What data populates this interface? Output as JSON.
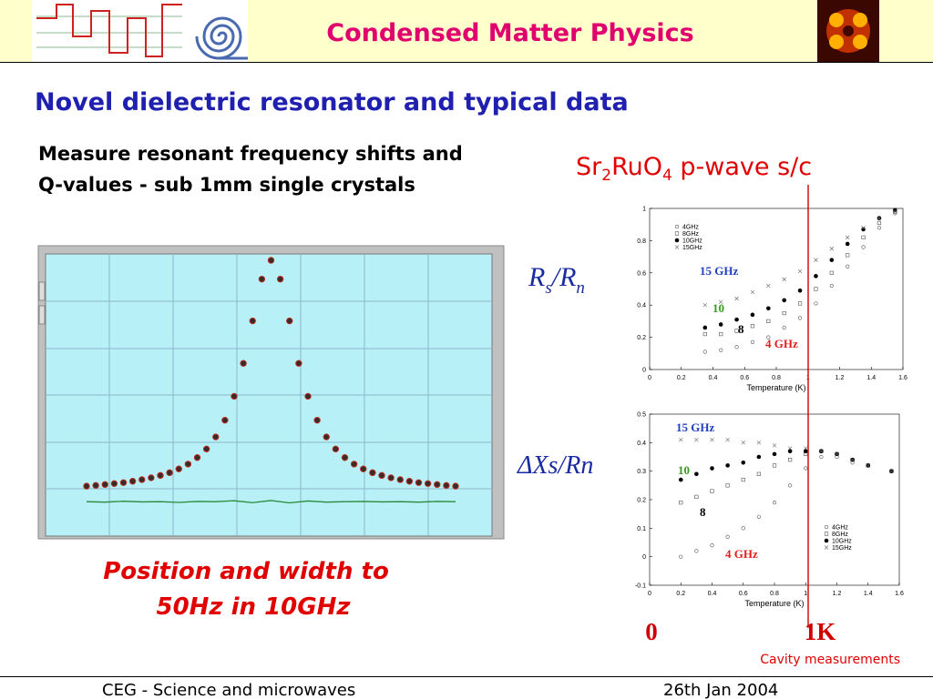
{
  "header": {
    "title": "Condensed Matter Physics"
  },
  "heading": "Novel dielectric resonator and typical data",
  "intro": [
    "Measure resonant frequency shifts and",
    "Q-values - sub 1mm single crystals"
  ],
  "material": [
    "Sr",
    "2",
    "RuO",
    "4",
    " p-wave s/c"
  ],
  "labels": {
    "rs_rn": [
      "R",
      "s",
      "/R",
      "n"
    ],
    "xs_rn": "ΔXs/Rn",
    "zero": "0",
    "one_k": "1K"
  },
  "resonance": {
    "x": [
      0,
      2.5,
      5,
      7.5,
      10,
      12.5,
      15,
      17.5,
      20,
      22.5,
      25,
      27.5,
      30,
      32.5,
      35,
      37.5,
      40,
      42.5,
      45,
      47.5,
      50,
      52.5,
      55,
      57.5,
      60,
      62.5,
      65,
      67.5,
      70,
      72.5,
      75,
      77.5,
      80,
      82.5,
      85,
      87.5,
      90,
      92.5,
      95,
      97.5,
      100
    ],
    "y": [
      2.7,
      3.0,
      3.4,
      3.8,
      4.2,
      4.8,
      5.5,
      6.3,
      7.3,
      8.5,
      10.1,
      12.2,
      15.0,
      18.7,
      23.9,
      31.1,
      41.4,
      55.6,
      73.9,
      91.9,
      100,
      91.9,
      73.9,
      55.6,
      41.4,
      31.1,
      23.9,
      18.7,
      15.0,
      12.2,
      10.1,
      8.5,
      7.3,
      6.3,
      5.5,
      4.8,
      4.2,
      3.8,
      3.4,
      3.0,
      2.7
    ],
    "baseline": {
      "x": [
        0,
        5,
        10,
        15,
        20,
        25,
        30,
        35,
        40,
        45,
        50,
        55,
        60,
        65,
        70,
        75,
        80,
        85,
        90,
        95,
        100
      ],
      "values": [
        -4,
        -4.2,
        -3.8,
        -4.1,
        -4,
        -4.3,
        -3.9,
        -4,
        -3.6,
        -4.4,
        -3.5,
        -4.5,
        -3.7,
        -4.2,
        -4,
        -3.9,
        -4.1,
        -4,
        -4.2,
        -3.9,
        -4
      ]
    },
    "caption": [
      "Position and width to",
      "50Hz in 10GHz"
    ]
  },
  "charts": [
    {
      "type": "scatter",
      "x_label": "Temperature (K)",
      "xlim": [
        0,
        1.6
      ],
      "ylim": [
        0,
        1
      ],
      "xticks": [
        0,
        0.2,
        0.4,
        0.6,
        0.8,
        1,
        1.2,
        1.4,
        1.6
      ],
      "yticks": [
        0,
        0.2,
        0.4,
        0.6,
        0.8,
        1
      ],
      "legend": "upper left",
      "series": [
        {
          "name": "4GHz",
          "marker": "circle-open",
          "x": [
            0.35,
            0.45,
            0.55,
            0.65,
            0.75,
            0.85,
            0.95,
            1.05,
            1.15,
            1.25,
            1.35,
            1.45,
            1.55
          ],
          "values": [
            0.11,
            0.12,
            0.14,
            0.17,
            0.2,
            0.26,
            0.32,
            0.41,
            0.52,
            0.64,
            0.76,
            0.88,
            0.97
          ]
        },
        {
          "name": "8GHz",
          "marker": "square-open",
          "x": [
            0.35,
            0.45,
            0.55,
            0.65,
            0.75,
            0.85,
            0.95,
            1.05,
            1.15,
            1.25,
            1.35,
            1.45,
            1.55
          ],
          "values": [
            0.22,
            0.22,
            0.24,
            0.27,
            0.3,
            0.35,
            0.41,
            0.5,
            0.6,
            0.71,
            0.82,
            0.91,
            0.98
          ]
        },
        {
          "name": "10GHz",
          "marker": "circle",
          "x": [
            0.35,
            0.45,
            0.55,
            0.65,
            0.75,
            0.85,
            0.95,
            1.05,
            1.15,
            1.25,
            1.35,
            1.45,
            1.55
          ],
          "values": [
            0.26,
            0.28,
            0.31,
            0.34,
            0.38,
            0.43,
            0.49,
            0.58,
            0.68,
            0.78,
            0.87,
            0.94,
            0.99
          ]
        },
        {
          "name": "15GHz",
          "marker": "x",
          "x": [
            0.35,
            0.45,
            0.55,
            0.65,
            0.75,
            0.85,
            0.95,
            1.05,
            1.15,
            1.25,
            1.35,
            1.45,
            1.55
          ],
          "values": [
            0.4,
            0.42,
            0.44,
            0.48,
            0.52,
            0.56,
            0.61,
            0.68,
            0.75,
            0.82,
            0.88,
            0.94,
            0.98
          ]
        }
      ],
      "annotations": [
        {
          "text": "15 GHz",
          "color": "#2040c0"
        },
        {
          "text": "10",
          "color": "#3a9a20"
        },
        {
          "text": "8",
          "color": "#000000"
        },
        {
          "text": "4 GHz",
          "color": "#e02020"
        }
      ]
    },
    {
      "type": "scatter",
      "x_label": "Temperature (K)",
      "xlim": [
        0,
        1.6
      ],
      "ylim": [
        -0.1,
        0.5
      ],
      "xticks": [
        0,
        0.2,
        0.4,
        0.6,
        0.8,
        1,
        1.2,
        1.4,
        1.6
      ],
      "yticks": [
        -0.1,
        0,
        0.1,
        0.2,
        0.3,
        0.4,
        0.5
      ],
      "legend": "lower right",
      "series": [
        {
          "name": "4GHz",
          "marker": "circle-open",
          "x": [
            0.2,
            0.3,
            0.4,
            0.5,
            0.6,
            0.7,
            0.8,
            0.9,
            1,
            1.1,
            1.2,
            1.3,
            1.4,
            1.55
          ],
          "values": [
            0,
            0.02,
            0.04,
            0.07,
            0.1,
            0.14,
            0.19,
            0.25,
            0.31,
            0.35,
            0.35,
            0.33,
            0.32,
            0.3
          ]
        },
        {
          "name": "8GHz",
          "marker": "square-open",
          "x": [
            0.2,
            0.3,
            0.4,
            0.5,
            0.6,
            0.7,
            0.8,
            0.9,
            1,
            1.1,
            1.2,
            1.3,
            1.4,
            1.55
          ],
          "values": [
            0.19,
            0.21,
            0.23,
            0.25,
            0.27,
            0.29,
            0.32,
            0.34,
            0.36,
            0.37,
            0.36,
            0.34,
            0.32,
            0.3
          ]
        },
        {
          "name": "10GHz",
          "marker": "circle",
          "x": [
            0.2,
            0.3,
            0.4,
            0.5,
            0.6,
            0.7,
            0.8,
            0.9,
            1,
            1.1,
            1.2,
            1.3,
            1.4,
            1.55
          ],
          "values": [
            0.27,
            0.29,
            0.31,
            0.32,
            0.33,
            0.35,
            0.36,
            0.37,
            0.37,
            0.37,
            0.36,
            0.34,
            0.32,
            0.3
          ]
        },
        {
          "name": "15GHz",
          "marker": "x",
          "x": [
            0.2,
            0.3,
            0.4,
            0.5,
            0.6,
            0.7,
            0.8,
            0.9,
            1,
            1.1,
            1.2,
            1.3,
            1.4,
            1.55
          ],
          "values": [
            0.41,
            0.41,
            0.41,
            0.41,
            0.4,
            0.4,
            0.39,
            0.38,
            0.38,
            0.37,
            0.36,
            0.34,
            0.32,
            0.3
          ]
        }
      ],
      "annotations": [
        {
          "text": "15 GHz",
          "color": "#2040c0"
        },
        {
          "text": "10",
          "color": "#3a9a20"
        },
        {
          "text": "8",
          "color": "#000000"
        },
        {
          "text": "4 GHz",
          "color": "#e02020"
        }
      ]
    }
  ],
  "footnote": "Cavity measurements",
  "footer": {
    "left": "CEG - Science and microwaves",
    "right": "26th Jan 2004"
  }
}
